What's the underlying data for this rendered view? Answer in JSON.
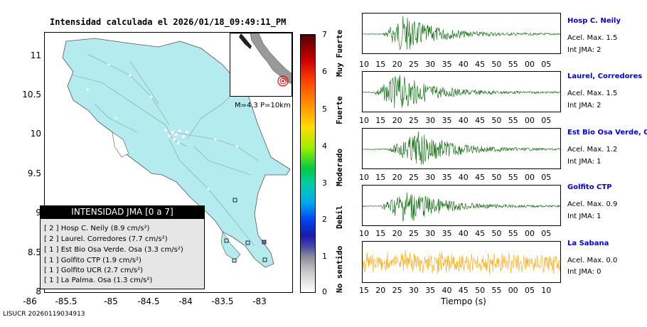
{
  "map": {
    "title": "Intensidad calculada el 2026/01/18_09:49:11_PM",
    "lat_ticks": [
      "11",
      "10.5",
      "10",
      "9.5",
      "9",
      "8.5",
      "8"
    ],
    "lon_ticks": [
      "-86",
      "-85.5",
      "-85",
      "-84.5",
      "-84",
      "-83.5",
      "-83"
    ],
    "legend_title": "INTENSIDAD JMA [0 a 7]",
    "legend_items": [
      "[ 2 ]  Hosp C. Neily (8.9 cm/s²)",
      "[ 2 ]  Laurel. Corredores (7.7 cm/s²)",
      "[ 1 ]  Est Bio Osa Verde. Osa (3.3 cm/s²)",
      "[ 1 ]  Golfito CTP (1.9 cm/s²)",
      "[ 1 ]  Golfito UCR (2.7 cm/s²)",
      "[ 1 ]  La Palma. Osa (1.3 cm/s²)"
    ],
    "inset_caption": "M=4.3 P=10km",
    "land_color": "#b3ebee"
  },
  "colorbar": {
    "values": [
      "7",
      "6",
      "5",
      "4",
      "3",
      "2",
      "1",
      "0"
    ],
    "categories": [
      "Muy Fuerte",
      "Fuerte",
      "Moderado",
      "Debil",
      "No sentido"
    ]
  },
  "stations": [
    {
      "name": "Hosp C. Neily",
      "acel": "Acel. Max. 1.5",
      "int": "Int JMA: 2",
      "color": "#006400",
      "ticks": [
        "10",
        "15",
        "20",
        "25",
        "30",
        "35",
        "40",
        "45",
        "50",
        "55",
        "00",
        "05"
      ]
    },
    {
      "name": "Laurel, Corredores",
      "acel": "Acel. Max. 1.5",
      "int": "Int JMA: 2",
      "color": "#006400",
      "ticks": [
        "10",
        "15",
        "20",
        "25",
        "30",
        "35",
        "40",
        "45",
        "50",
        "55",
        "00",
        "05"
      ]
    },
    {
      "name": "Est Bio Osa Verde, Osa",
      "acel": "Acel. Max. 1.2",
      "int": "Int JMA: 1",
      "color": "#006400",
      "ticks": [
        "10",
        "15",
        "20",
        "25",
        "30",
        "35",
        "40",
        "45",
        "50",
        "55",
        "00",
        "05"
      ]
    },
    {
      "name": "Golfito CTP",
      "acel": "Acel. Max. 0.9",
      "int": "Int JMA: 1",
      "color": "#006400",
      "ticks": [
        "10",
        "15",
        "20",
        "25",
        "30",
        "35",
        "40",
        "45",
        "50",
        "55",
        "00",
        "05"
      ]
    },
    {
      "name": "La Sabana",
      "acel": "Acel. Max. 0.0",
      "int": "Int JMA: 0",
      "color": "#ffa500",
      "ticks": [
        "15",
        "20",
        "25",
        "30",
        "35",
        "40",
        "45",
        "50",
        "55",
        "00",
        "05",
        "10"
      ]
    }
  ],
  "xaxis_title": "Tiempo (s)",
  "footer": "LISUCR 20260119034913",
  "chart_data": {
    "type": "scatter",
    "title": "Intensidad calculada el 2026/01/18_09:49:11_PM",
    "xlim": [
      -86,
      -82.8
    ],
    "ylim": [
      8,
      11.3
    ],
    "stations": [
      {
        "name": "Hosp C. Neily",
        "jma": 2,
        "pga_cm_s2": 8.9
      },
      {
        "name": "Laurel. Corredores",
        "jma": 2,
        "pga_cm_s2": 7.7
      },
      {
        "name": "Est Bio Osa Verde. Osa",
        "jma": 1,
        "pga_cm_s2": 3.3
      },
      {
        "name": "Golfito CTP",
        "jma": 1,
        "pga_cm_s2": 1.9
      },
      {
        "name": "Golfito UCR",
        "jma": 1,
        "pga_cm_s2": 2.7
      },
      {
        "name": "La Palma. Osa",
        "jma": 1,
        "pga_cm_s2": 1.3
      }
    ],
    "colorbar_range": [
      0,
      7
    ]
  }
}
